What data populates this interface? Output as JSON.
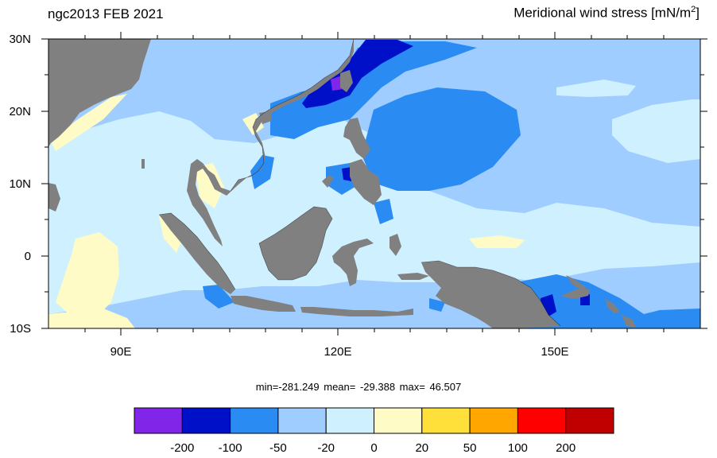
{
  "header": {
    "left_title": "ngc2013 FEB 2021",
    "right_title_main": "Meridional wind stress [mN/m",
    "right_title_sup": "2",
    "right_title_end": "]"
  },
  "map": {
    "lat_labels": [
      "30N",
      "20N",
      "10N",
      "0",
      "10S"
    ],
    "lon_labels": [
      "90E",
      "120E",
      "150E"
    ],
    "colors": {
      "land": "#808080",
      "c_lt_m20": "#9fcdff",
      "c_m20_0": "#cff0ff",
      "c_0_20": "#fffbc6",
      "c_m50_m20": "#2a8cf3",
      "c_m100_m50": "#0010c9",
      "c_lt_m200": "#8126e8"
    }
  },
  "stats_line": "min=-281.249  mean= -29.388  max=  46.507",
  "colorbar": {
    "colors": [
      "#8126e8",
      "#0010c9",
      "#2a8cf3",
      "#9fcdff",
      "#cff0ff",
      "#fffbc6",
      "#ffdf3a",
      "#ffa600",
      "#ff0000",
      "#c00000"
    ],
    "labels": [
      "-200",
      "-100",
      "-50",
      "-20",
      "0",
      "20",
      "50",
      "100",
      "200"
    ]
  }
}
